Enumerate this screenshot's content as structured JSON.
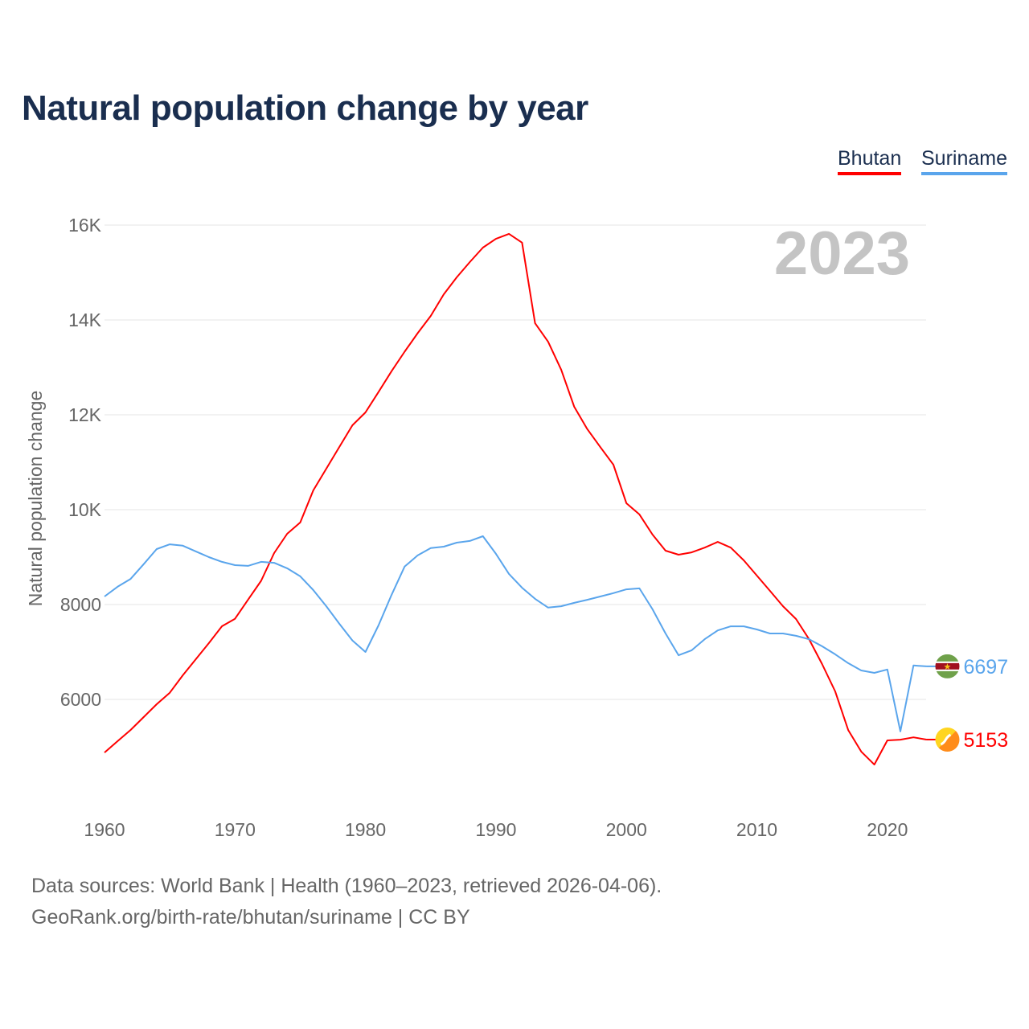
{
  "chart_data": {
    "type": "line",
    "title": "Natural population change by year",
    "ylabel": "Natural population change",
    "xlabel": "",
    "year_label": "2023",
    "xlim": [
      1960,
      2023
    ],
    "ylim": [
      4000,
      16000
    ],
    "xticks": [
      1960,
      1970,
      1980,
      1990,
      2000,
      2010,
      2020
    ],
    "yticks": [
      {
        "v": 6000,
        "label": "6000"
      },
      {
        "v": 8000,
        "label": "8000"
      },
      {
        "v": 10000,
        "label": "10K"
      },
      {
        "v": 12000,
        "label": "12K"
      },
      {
        "v": 14000,
        "label": "14K"
      },
      {
        "v": 16000,
        "label": "16K"
      }
    ],
    "grid": true,
    "legend_position": "top-right",
    "x_start": 1960,
    "series": [
      {
        "name": "Bhutan",
        "color": "#ff0000",
        "end_label": "5153",
        "flag_icon": "bhutan-flag-icon",
        "values": [
          4880,
          5119,
          5356,
          5627,
          5898,
          6140,
          6508,
          6847,
          7186,
          7542,
          7700,
          8100,
          8500,
          9085,
          9492,
          9730,
          10407,
          10864,
          11322,
          11780,
          12050,
          12480,
          12920,
          13330,
          13720,
          14085,
          14540,
          14900,
          15220,
          15525,
          15710,
          15815,
          15630,
          13930,
          13540,
          12950,
          12170,
          11700,
          11320,
          10950,
          10135,
          9900,
          9475,
          9135,
          9050,
          9100,
          9200,
          9320,
          9200,
          8930,
          8610,
          8290,
          7965,
          7695,
          7270,
          6745,
          6170,
          5355,
          4900,
          4625,
          5135,
          5150,
          5200,
          5153
        ]
      },
      {
        "name": "Suriname",
        "color": "#5aa5ec",
        "end_label": "6697",
        "flag_icon": "suriname-flag-icon",
        "values": [
          8170,
          8375,
          8540,
          8850,
          9170,
          9270,
          9240,
          9120,
          9000,
          8900,
          8830,
          8815,
          8900,
          8880,
          8765,
          8595,
          8305,
          7965,
          7595,
          7240,
          7000,
          7560,
          8205,
          8800,
          9035,
          9190,
          9220,
          9305,
          9340,
          9440,
          9070,
          8645,
          8355,
          8120,
          7935,
          7965,
          8035,
          8100,
          8170,
          8240,
          8320,
          8340,
          7900,
          7390,
          6930,
          7035,
          7270,
          7455,
          7540,
          7540,
          7475,
          7390,
          7390,
          7340,
          7270,
          7120,
          6950,
          6765,
          6610,
          6560,
          6630,
          5325,
          6715,
          6697
        ]
      }
    ]
  },
  "source_line1": "Data sources: World Bank | Health (1960–2023, retrieved 2026-04-06).",
  "source_line2": "GeoRank.org/birth-rate/bhutan/suriname | CC BY"
}
